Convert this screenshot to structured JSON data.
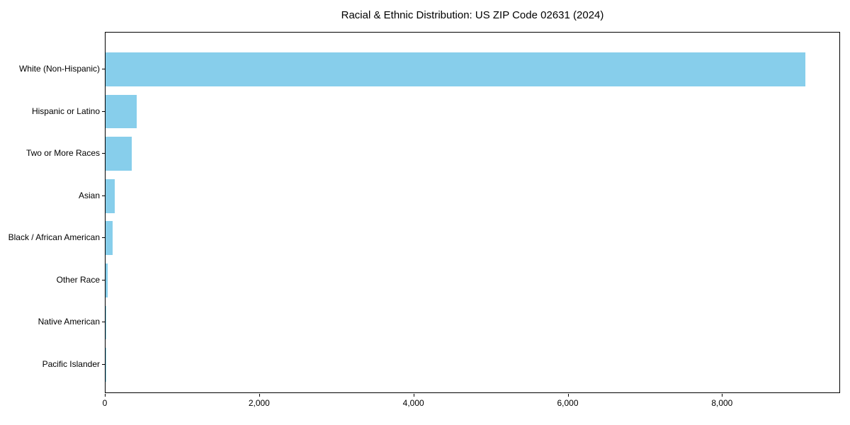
{
  "title": "Racial & Ethnic Distribution: US ZIP Code 02631 (2024)",
  "chart_data": {
    "type": "bar",
    "orientation": "horizontal",
    "title": "Racial & Ethnic Distribution: US ZIP Code 02631 (2024)",
    "xlabel": "",
    "ylabel": "",
    "categories": [
      "White (Non-Hispanic)",
      "Hispanic or Latino",
      "Two or More Races",
      "Asian",
      "Black / African American",
      "Other Race",
      "Native American",
      "Pacific Islander"
    ],
    "values": [
      9075,
      405,
      340,
      115,
      95,
      25,
      8,
      2
    ],
    "xlim": [
      0,
      9530
    ],
    "x_ticks": [
      0,
      2000,
      4000,
      6000,
      8000
    ],
    "x_tick_labels": [
      "0",
      "2,000",
      "4,000",
      "6,000",
      "8,000"
    ],
    "bar_color": "#87CEEB",
    "axis_color": "#000000",
    "grid": false,
    "legend": "none"
  }
}
